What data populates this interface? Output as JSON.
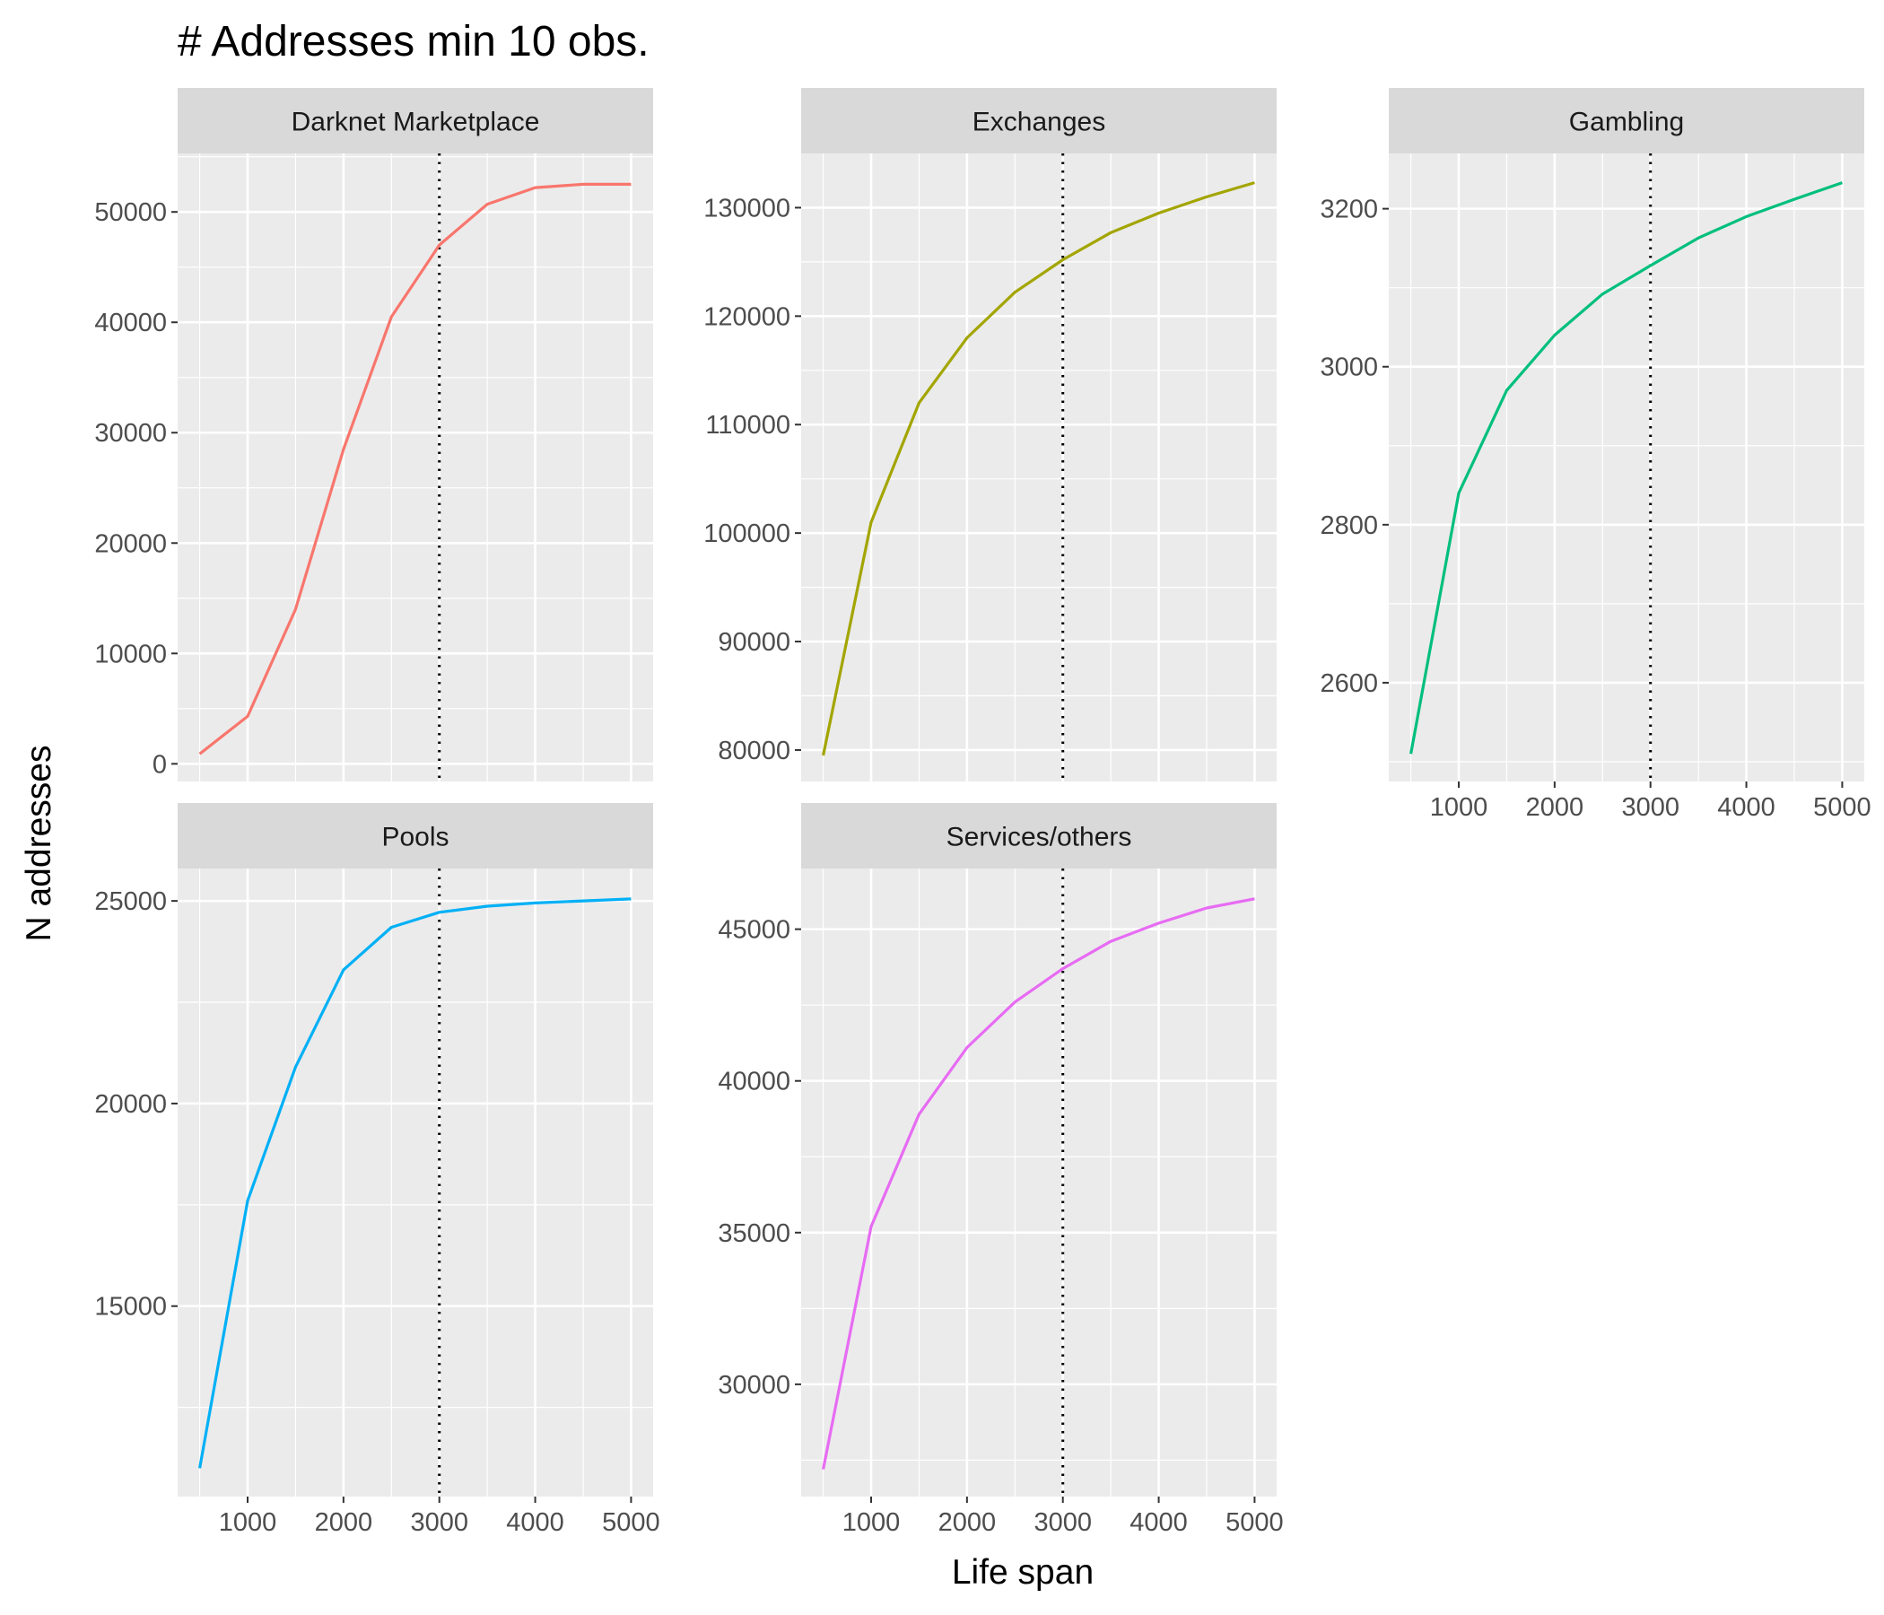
{
  "chart_data": {
    "type": "line",
    "title": "# Addresses min 10 obs.",
    "xlabel": "Life span",
    "ylabel": "N addresses",
    "reference_line": {
      "x": 3000,
      "style": "dotted",
      "color": "#000000"
    },
    "x": [
      500,
      1000,
      1500,
      2000,
      2500,
      3000,
      3500,
      4000,
      4500,
      5000
    ],
    "x_ticks": [
      1000,
      2000,
      3000,
      4000,
      5000
    ],
    "xlim": [
      270,
      5230
    ],
    "grid": true,
    "panels": [
      {
        "name": "Darknet Marketplace",
        "color": "#F8766D",
        "values": [
          900,
          4300,
          14000,
          28500,
          40500,
          47000,
          50700,
          52200,
          52500,
          52500
        ],
        "y_ticks": [
          0,
          10000,
          20000,
          30000,
          40000,
          50000
        ],
        "ylim": [
          -1600,
          55300
        ]
      },
      {
        "name": "Exchanges",
        "color": "#A3A500",
        "values": [
          79500,
          101000,
          112000,
          118000,
          122200,
          125200,
          127700,
          129500,
          131000,
          132300
        ],
        "y_ticks": [
          80000,
          90000,
          100000,
          110000,
          120000,
          130000
        ],
        "ylim": [
          77100,
          135000
        ]
      },
      {
        "name": "Gambling",
        "color": "#00BF7D",
        "values": [
          2510,
          2840,
          2970,
          3040,
          3092,
          3128,
          3163,
          3190,
          3212,
          3233
        ],
        "y_ticks": [
          2600,
          2800,
          3000,
          3200
        ],
        "ylim": [
          2475,
          3270
        ]
      },
      {
        "name": "Pools",
        "color": "#00B0F6",
        "values": [
          11000,
          17600,
          20900,
          23300,
          24350,
          24720,
          24870,
          24950,
          25000,
          25050
        ],
        "y_ticks": [
          15000,
          20000,
          25000
        ],
        "ylim": [
          10300,
          25800
        ]
      },
      {
        "name": "Services/others",
        "color": "#E76BF3",
        "values": [
          27200,
          35200,
          38900,
          41100,
          42600,
          43700,
          44600,
          45200,
          45700,
          46000
        ],
        "y_ticks": [
          30000,
          35000,
          40000,
          45000
        ],
        "ylim": [
          26300,
          47000
        ]
      }
    ]
  }
}
